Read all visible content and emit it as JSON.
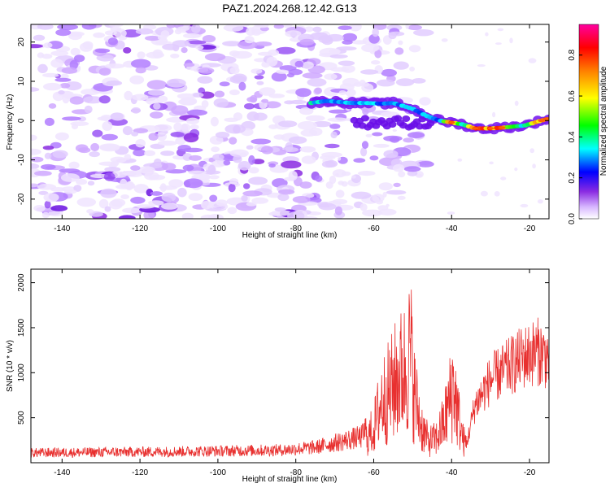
{
  "title": "PAZ1.2024.268.12.42.G13",
  "chart_data": [
    {
      "type": "heatmap",
      "xlabel": "Height of straight line (km)",
      "ylabel": "Frequency (Hz)",
      "xlim": [
        -148,
        -15
      ],
      "ylim": [
        -25,
        24.5
      ],
      "xticks": [
        -140,
        -120,
        -100,
        -80,
        -60,
        -40,
        -20
      ],
      "yticks": [
        -20,
        -10,
        0,
        10,
        20
      ],
      "colorbar": {
        "label": "Normalized spectral amplitude",
        "range": [
          0,
          0.95
        ],
        "ticks": [
          0.0,
          0.2,
          0.4,
          0.6,
          0.8
        ],
        "colors": [
          "#ffffff",
          "#d8b8ff",
          "#8a2be2",
          "#0000ff",
          "#00ffff",
          "#00ff00",
          "#ffff00",
          "#ff8000",
          "#ff0000",
          "#ff00a0"
        ]
      },
      "ridge": [
        {
          "x": -76,
          "y": 4.5,
          "a": 0.35
        },
        {
          "x": -72,
          "y": 5,
          "a": 0.3
        },
        {
          "x": -66,
          "y": 4.5,
          "a": 0.3
        },
        {
          "x": -62,
          "y": 4.5,
          "a": 0.3
        },
        {
          "x": -58,
          "y": 4.3,
          "a": 0.3
        },
        {
          "x": -55,
          "y": 4.5,
          "a": 0.3
        },
        {
          "x": -50,
          "y": 3,
          "a": 0.3
        },
        {
          "x": -46,
          "y": 1,
          "a": 0.3
        },
        {
          "x": -43,
          "y": 0,
          "a": 0.3
        },
        {
          "x": -40,
          "y": -0.5,
          "a": 0.75
        },
        {
          "x": -37,
          "y": -1,
          "a": 0.3
        },
        {
          "x": -34,
          "y": -2,
          "a": 0.75
        },
        {
          "x": -30,
          "y": -2,
          "a": 0.75
        },
        {
          "x": -27,
          "y": -1.8,
          "a": 0.75
        },
        {
          "x": -24,
          "y": -1.5,
          "a": 0.4
        },
        {
          "x": -21,
          "y": -1.2,
          "a": 0.4
        },
        {
          "x": -17,
          "y": 0,
          "a": 0.75
        },
        {
          "x": -15,
          "y": 0.5,
          "a": 0.75
        }
      ]
    },
    {
      "type": "line",
      "xlabel": "Height of straight line (km)",
      "ylabel": "SNR (10 * v/v)",
      "xlim": [
        -148,
        -15
      ],
      "ylim": [
        0,
        2150
      ],
      "xticks": [
        -140,
        -120,
        -100,
        -80,
        -60,
        -40,
        -20
      ],
      "yticks": [
        500,
        1000,
        1500,
        2000
      ],
      "color": "#e8302f",
      "envelope": [
        {
          "x": -148,
          "y": 120
        },
        {
          "x": -120,
          "y": 130
        },
        {
          "x": -100,
          "y": 140
        },
        {
          "x": -84,
          "y": 150
        },
        {
          "x": -75,
          "y": 180
        },
        {
          "x": -70,
          "y": 230
        },
        {
          "x": -63,
          "y": 300
        },
        {
          "x": -60,
          "y": 600
        },
        {
          "x": -58,
          "y": 1100
        },
        {
          "x": -56,
          "y": 1250
        },
        {
          "x": -54,
          "y": 1500
        },
        {
          "x": -52,
          "y": 1650
        },
        {
          "x": -50.5,
          "y": 1950
        },
        {
          "x": -49.5,
          "y": 1200
        },
        {
          "x": -48,
          "y": 700
        },
        {
          "x": -46,
          "y": 380
        },
        {
          "x": -44,
          "y": 420
        },
        {
          "x": -42,
          "y": 700
        },
        {
          "x": -40.5,
          "y": 1100
        },
        {
          "x": -39.5,
          "y": 1400
        },
        {
          "x": -38.5,
          "y": 900
        },
        {
          "x": -37,
          "y": 400
        },
        {
          "x": -36,
          "y": 300
        },
        {
          "x": -34,
          "y": 800
        },
        {
          "x": -30,
          "y": 1150
        },
        {
          "x": -26,
          "y": 1300
        },
        {
          "x": -22,
          "y": 1450
        },
        {
          "x": -18,
          "y": 1550
        },
        {
          "x": -15,
          "y": 1450
        }
      ]
    }
  ]
}
